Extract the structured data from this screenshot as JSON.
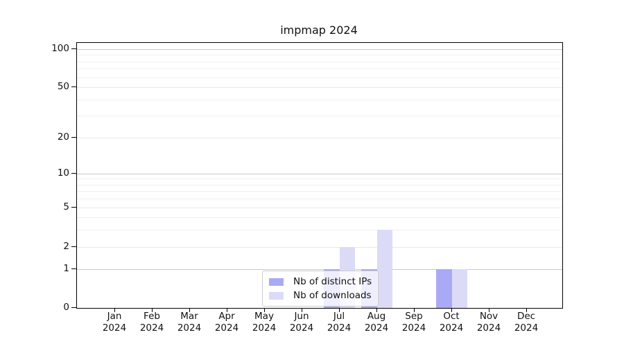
{
  "figure": {
    "title": "impmap 2024"
  },
  "chart_data": {
    "type": "bar",
    "title": "impmap 2024",
    "x_axis": {
      "year": "2024",
      "months": [
        "Jan",
        "Feb",
        "Mar",
        "Apr",
        "May",
        "Jun",
        "Jul",
        "Aug",
        "Sep",
        "Oct",
        "Nov",
        "Dec"
      ]
    },
    "series": [
      {
        "name": "Nb of distinct IPs",
        "color": "#a9a9f5",
        "values": [
          0,
          0,
          0,
          0,
          0,
          0,
          1,
          1,
          0,
          1,
          0,
          0
        ]
      },
      {
        "name": "Nb of downloads",
        "color": "#dbdbf8",
        "values": [
          0,
          0,
          0,
          0,
          0,
          0,
          2,
          3,
          0,
          1,
          0,
          0
        ]
      }
    ],
    "y_axis": {
      "scale": "log-like, compressed near zero",
      "tick_labels": [
        "0",
        "1",
        "2",
        "5",
        "10",
        "20",
        "50",
        "100"
      ],
      "tick_values": [
        0,
        1,
        2,
        5,
        10,
        20,
        50,
        100
      ],
      "decade_gridlines": [
        1,
        10,
        100
      ],
      "labeled_gridlines": [
        2,
        5,
        20,
        50
      ],
      "minor_gridlines": [
        3,
        4,
        6,
        7,
        8,
        9,
        30,
        40,
        60,
        70,
        80,
        90
      ],
      "ylim": [
        0,
        115
      ]
    },
    "legend": {
      "entries": [
        "Nb of distinct IPs",
        "Nb of downloads"
      ],
      "position": "inside lower-center"
    },
    "colors": {
      "decade_grid": "#c9c9c9",
      "light_grid": "#e9e9e9",
      "minor_grid": "#efefef",
      "axis": "#000000",
      "background": "#ffffff"
    }
  }
}
